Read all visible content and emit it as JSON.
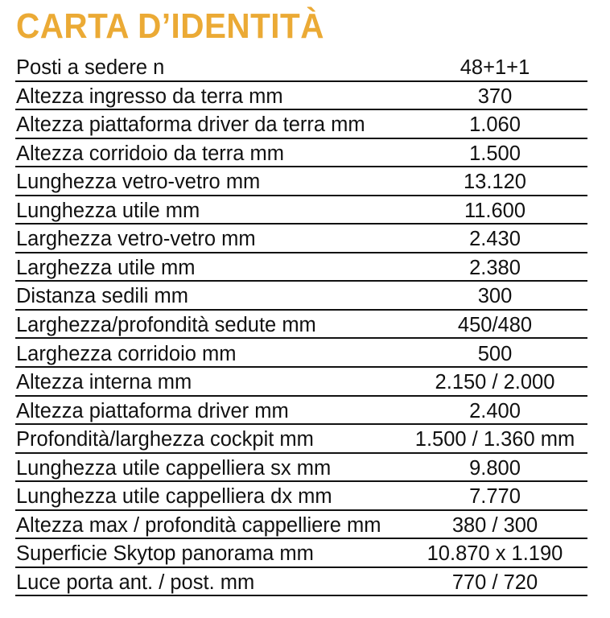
{
  "title": "CARTA D’IDENTITÀ",
  "title_color": "#EBAA35",
  "rows": [
    {
      "label": "Posti a sedere n",
      "value": "48+1+1"
    },
    {
      "label": "Altezza ingresso da terra mm",
      "value": "370"
    },
    {
      "label": "Altezza piattaforma driver da terra mm",
      "value": "1.060"
    },
    {
      "label": "Altezza corridoio da terra mm",
      "value": "1.500"
    },
    {
      "label": "Lunghezza vetro-vetro mm",
      "value": "13.120"
    },
    {
      "label": "Lunghezza utile mm",
      "value": "11.600"
    },
    {
      "label": "Larghezza vetro-vetro mm",
      "value": "2.430"
    },
    {
      "label": "Larghezza utile mm",
      "value": "2.380"
    },
    {
      "label": "Distanza sedili mm",
      "value": "300"
    },
    {
      "label": "Larghezza/profondità sedute mm",
      "value": "450/480"
    },
    {
      "label": "Larghezza corridoio mm",
      "value": "500"
    },
    {
      "label": "Altezza interna mm",
      "value": "2.150 / 2.000"
    },
    {
      "label": "Altezza piattaforma driver mm",
      "value": "2.400"
    },
    {
      "label": "Profondità/larghezza cockpit mm",
      "value": "1.500 / 1.360 mm"
    },
    {
      "label": "Lunghezza utile cappelliera sx mm",
      "value": "9.800"
    },
    {
      "label": "Lunghezza utile cappelliera dx mm",
      "value": "7.770"
    },
    {
      "label": "Altezza max / profondità cappelliere mm",
      "value": "380 / 300"
    },
    {
      "label": "Superficie Skytop panorama mm",
      "value": "10.870 x 1.190"
    },
    {
      "label": "Luce porta ant. / post. mm",
      "value": "770 / 720"
    }
  ]
}
